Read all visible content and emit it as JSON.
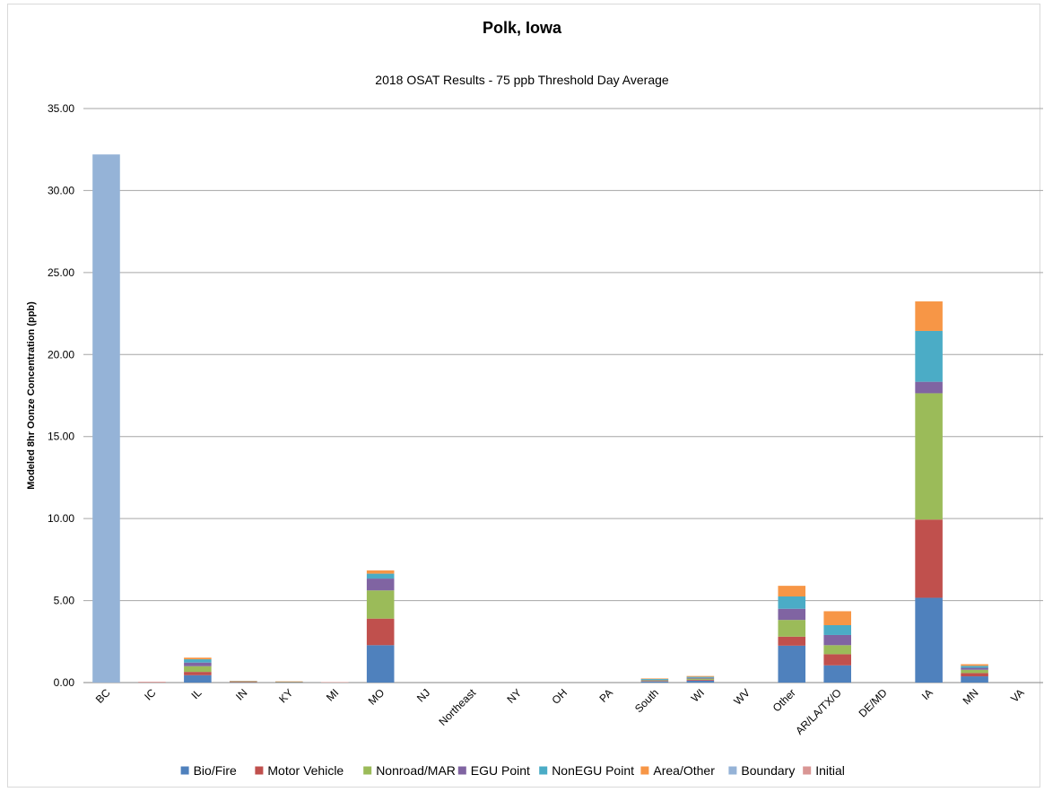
{
  "chart_data": {
    "type": "bar",
    "stacked": true,
    "title": "Polk, Iowa",
    "subtitle": "2018 OSAT Results - 75 ppb Threshold Day Average",
    "ylabel": "Modeled 8hr Oonze Concentration (ppb)",
    "xlabel": "",
    "ylim": [
      0,
      35
    ],
    "yticks": [
      "0.00",
      "5.00",
      "10.00",
      "15.00",
      "20.00",
      "25.00",
      "30.00",
      "35.00"
    ],
    "grid": true,
    "legend_position": "bottom",
    "categories": [
      "BC",
      "IC",
      "IL",
      "IN",
      "KY",
      "MI",
      "MO",
      "NJ",
      "Northeast",
      "NY",
      "OH",
      "PA",
      "South",
      "WI",
      "WV",
      "Other",
      "AR/LA/TX/O",
      "DE/MD",
      "IA",
      "MN",
      "VA"
    ],
    "series": [
      {
        "name": "Bio/Fire",
        "color": "#4F81BD",
        "values": [
          0,
          0,
          0.45,
          0.02,
          0.02,
          0,
          2.28,
          0,
          0,
          0,
          0,
          0,
          0.07,
          0.12,
          0,
          2.25,
          1.05,
          0,
          5.17,
          0.38,
          0
        ]
      },
      {
        "name": "Motor Vehicle",
        "color": "#C0504D",
        "values": [
          0,
          0,
          0.2,
          0.01,
          0.01,
          0,
          1.62,
          0,
          0,
          0,
          0,
          0,
          0.03,
          0.05,
          0,
          0.55,
          0.68,
          0,
          4.77,
          0.2,
          0
        ]
      },
      {
        "name": "Nonroad/MAR",
        "color": "#9BBB59",
        "values": [
          0,
          0,
          0.35,
          0.02,
          0.01,
          0,
          1.72,
          0,
          0,
          0,
          0,
          0,
          0.04,
          0.07,
          0,
          1.02,
          0.55,
          0,
          7.7,
          0.2,
          0
        ]
      },
      {
        "name": "EGU Point",
        "color": "#8064A2",
        "values": [
          0,
          0,
          0.22,
          0.02,
          0.01,
          0,
          0.72,
          0,
          0,
          0,
          0,
          0,
          0.03,
          0.05,
          0,
          0.68,
          0.62,
          0,
          0.7,
          0.12,
          0
        ]
      },
      {
        "name": "NonEGU Point",
        "color": "#4BACC6",
        "values": [
          0,
          0,
          0.2,
          0.02,
          0.01,
          0,
          0.3,
          0,
          0,
          0,
          0,
          0,
          0.05,
          0.06,
          0,
          0.75,
          0.6,
          0,
          3.1,
          0.12,
          0
        ]
      },
      {
        "name": "Area/Other",
        "color": "#F79646",
        "values": [
          0,
          0,
          0.1,
          0.01,
          0.01,
          0,
          0.2,
          0,
          0,
          0,
          0,
          0,
          0.03,
          0.05,
          0,
          0.65,
          0.85,
          0,
          1.8,
          0.1,
          0
        ]
      },
      {
        "name": "Boundary",
        "color": "#95B3D7",
        "values": [
          32.2,
          0,
          0,
          0,
          0,
          0,
          0,
          0,
          0,
          0,
          0,
          0,
          0,
          0,
          0,
          0,
          0,
          0,
          0,
          0,
          0
        ]
      },
      {
        "name": "Initial",
        "color": "#D99694",
        "values": [
          0,
          0.05,
          0,
          0,
          0,
          0.03,
          0,
          0,
          0,
          0,
          0,
          0,
          0,
          0,
          0,
          0,
          0,
          0,
          0,
          0,
          0
        ]
      }
    ]
  }
}
